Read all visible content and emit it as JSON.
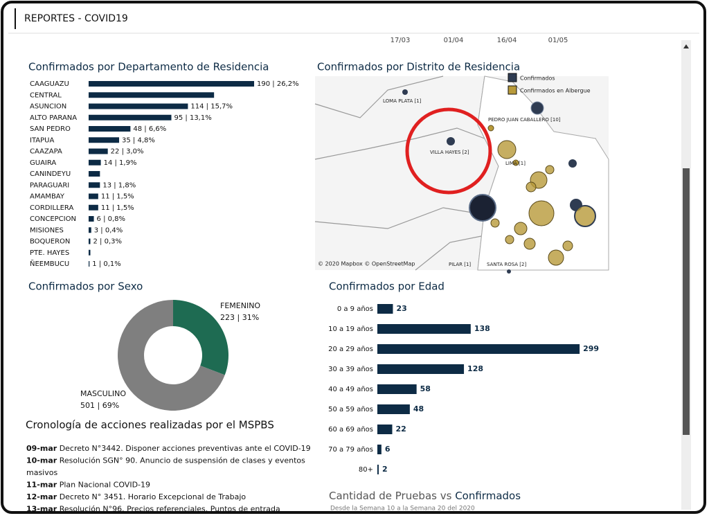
{
  "header": {
    "title": "REPORTES - COVID19"
  },
  "timeline_labels": [
    "17/03",
    "01/04",
    "16/04",
    "01/05"
  ],
  "map": {
    "title": "Confirmados por Distrito de Residencia",
    "legend": [
      "Confirmados",
      "Confirmados en Albergue"
    ],
    "places": [
      "LOMA PLATA [1]",
      "VILLA HAYES [2]",
      "PEDRO JUAN CABALLERO [10]",
      "LIMA [1]",
      "PILAR [1]",
      "SANTA ROSA [2]"
    ],
    "attribution": "© 2020 Mapbox © OpenStreetMap"
  },
  "chart_data": [
    {
      "type": "hbar",
      "title": "Confirmados por Departamento de Residencia",
      "color": "#0d2b45",
      "categories": [
        "CAAGUAZU",
        "CENTRAL",
        "ASUNCION",
        "ALTO PARANA",
        "SAN PEDRO",
        "ITAPUA",
        "CAAZAPA",
        "GUAIRA",
        "CANINDEYU",
        "PARAGUARI",
        "AMAMBAY",
        "CORDILLERA",
        "CONCEPCION",
        "MISIONES",
        "BOQUERON",
        "PTE. HAYES",
        "ÑEEMBUCU"
      ],
      "values": [
        190,
        144,
        114,
        95,
        48,
        35,
        22,
        14,
        13,
        13,
        11,
        11,
        6,
        3,
        2,
        2,
        1
      ],
      "value_labels": [
        "190 | 26,2%",
        null,
        "114 | 15,7%",
        "95 | 13,1%",
        "48 | 6,6%",
        "35 | 4,8%",
        "22 | 3,0%",
        "14 | 1,9%",
        null,
        "13 | 1,8%",
        "11 | 1,5%",
        "11 | 1,5%",
        "6 | 0,8%",
        "3 | 0,4%",
        "2 | 0,3%",
        null,
        "1 | 0,1%"
      ]
    },
    {
      "type": "donut",
      "title": "Confirmados por Sexo",
      "categories": [
        "FEMENINO",
        "MASCULINO"
      ],
      "values": [
        223,
        501
      ],
      "value_labels": [
        "223 | 31%",
        "501 | 69%"
      ],
      "colors": [
        "#1e6b52",
        "#7f7f7f"
      ]
    },
    {
      "type": "agebar",
      "title": "Confirmados por Edad",
      "color": "#0d2b45",
      "categories": [
        "0 a 9 años",
        "10 a 19 años",
        "20 a 29 años",
        "30 a 39 años",
        "40 a 49 años",
        "50 a 59 años",
        "60 a 69 años",
        "70 a 79 años",
        "80+"
      ],
      "values": [
        23,
        138,
        299,
        128,
        58,
        48,
        22,
        6,
        2
      ]
    }
  ],
  "cronologia": {
    "title": "Cronología de acciones realizadas por el MSPBS",
    "items": [
      {
        "date": "09-mar",
        "text": "Decreto N°3442.  Disponer acciones preventivas ante el COVID-19"
      },
      {
        "date": "10-mar",
        "text": "Resolución SGN° 90. Anuncio de suspensión de clases y eventos"
      },
      {
        "date": null,
        "text": "masivos"
      },
      {
        "date": "11-mar",
        "text": "Plan Nacional COVID-19"
      },
      {
        "date": "12-mar",
        "text": "Decreto N° 3451. Horario Excepcional de Trabajo"
      },
      {
        "date": "13-mar",
        "text": "Resolución N°96. Precios referenciales. Puntos de entrada"
      }
    ]
  },
  "pruebas": {
    "title_part1": "Cantidad de Pruebas vs",
    "title_part2": "Confirmados",
    "subtitle": "Desde la Semana 10 a la Semana 20 del 2020"
  }
}
